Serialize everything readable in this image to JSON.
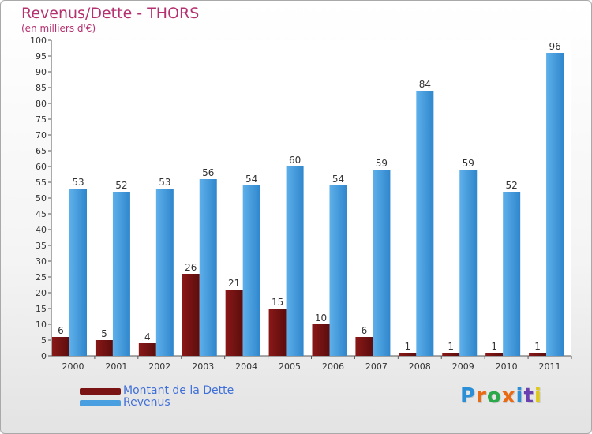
{
  "chart_data": {
    "type": "bar",
    "title": "Revenus/Dette - THORS",
    "subtitle": "(en milliers d'€)",
    "categories": [
      "2000",
      "2001",
      "2002",
      "2003",
      "2004",
      "2005",
      "2006",
      "2007",
      "2008",
      "2009",
      "2010",
      "2011"
    ],
    "series": [
      {
        "name": "Montant de la Dette",
        "color": "#7a1313",
        "values": [
          6,
          5,
          4,
          26,
          21,
          15,
          10,
          6,
          1,
          1,
          1,
          1
        ]
      },
      {
        "name": "Revenus",
        "color": "#4a9fe0",
        "values": [
          53,
          52,
          53,
          56,
          54,
          60,
          54,
          59,
          84,
          59,
          52,
          96
        ]
      }
    ],
    "ylim": [
      0,
      100
    ],
    "ytick_step": 5,
    "xlabel": "",
    "ylabel": "",
    "grid": false,
    "legend": "bottom-left"
  },
  "logo": {
    "text": "Proxiti",
    "colors": [
      "#2a8fd6",
      "#e96a12",
      "#2aa84a",
      "#e96a12",
      "#2a8fd6",
      "#6a3fb0",
      "#e0c81a"
    ]
  }
}
